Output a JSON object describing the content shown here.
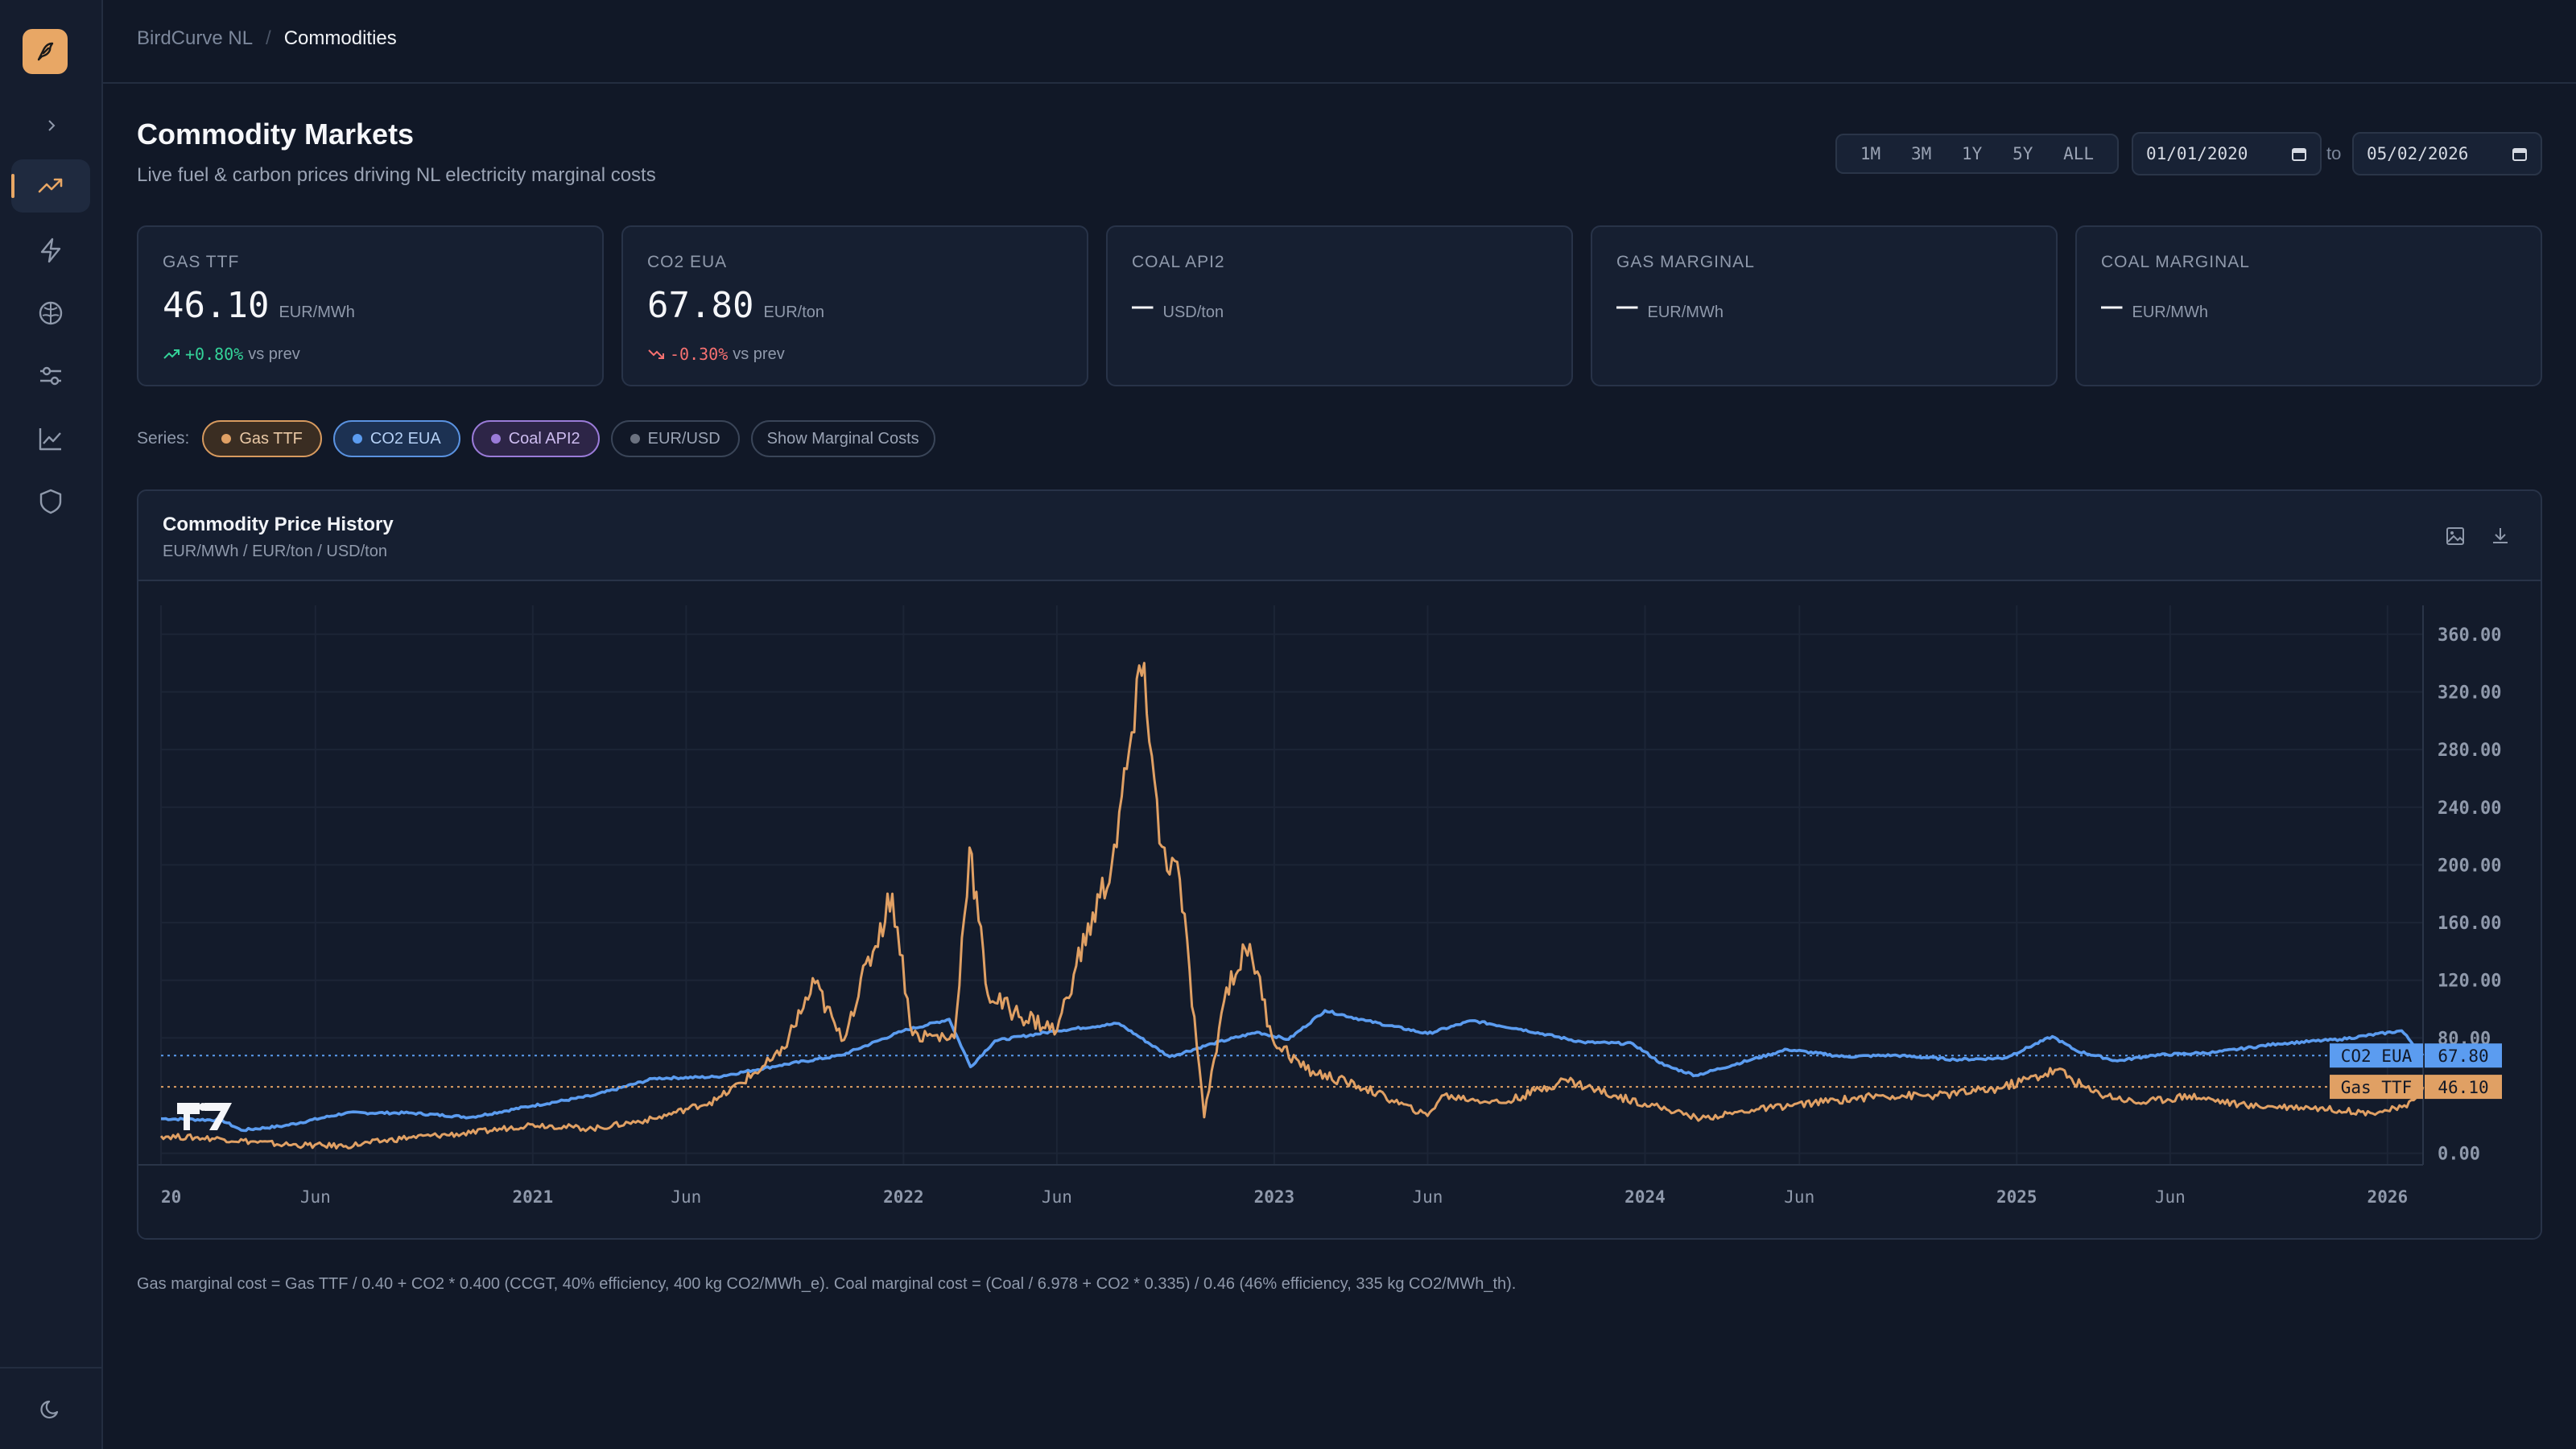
{
  "app": {
    "name": "BirdCurve NL",
    "section": "Commodities"
  },
  "header": {
    "title": "Commodity Markets",
    "subtitle": "Live fuel & carbon prices driving NL electricity marginal costs",
    "ranges": [
      "1M",
      "3M",
      "1Y",
      "5Y",
      "ALL"
    ],
    "date_from": "01/01/2020",
    "date_to": "05/02/2026",
    "to_label": "to"
  },
  "sidebar": {
    "items": [
      {
        "name": "trending-up-icon",
        "active": true
      },
      {
        "name": "lightning-icon"
      },
      {
        "name": "brain-icon"
      },
      {
        "name": "sliders-icon"
      },
      {
        "name": "line-chart-icon"
      },
      {
        "name": "shield-icon"
      }
    ],
    "theme_icon": "moon-icon"
  },
  "cards": [
    {
      "label": "GAS TTF",
      "value": "46.10",
      "unit": "EUR/MWh",
      "change": "+0.80%",
      "change_suffix": "vs prev",
      "direction": "up"
    },
    {
      "label": "CO2 EUA",
      "value": "67.80",
      "unit": "EUR/ton",
      "change": "-0.30%",
      "change_suffix": "vs prev",
      "direction": "down"
    },
    {
      "label": "COAL API2",
      "value": "—",
      "unit": "USD/ton"
    },
    {
      "label": "GAS MARGINAL",
      "value": "—",
      "unit": "EUR/MWh"
    },
    {
      "label": "COAL MARGINAL",
      "value": "—",
      "unit": "EUR/MWh"
    }
  ],
  "series_toggle": {
    "label": "Series:",
    "items": [
      "Gas TTF",
      "CO2 EUA",
      "Coal API2",
      "EUR/USD"
    ],
    "marginal_button": "Show Marginal Costs"
  },
  "chart": {
    "title": "Commodity Price History",
    "units": "EUR/MWh / EUR/ton / USD/ton",
    "actions": [
      "image-icon",
      "download-icon"
    ]
  },
  "chart_data": {
    "type": "line",
    "x_ticks": [
      "20",
      "Jun",
      "2021",
      "Jun",
      "2022",
      "Jun",
      "2023",
      "Jun",
      "2024",
      "Jun",
      "2025",
      "Jun",
      "2026"
    ],
    "y_ticks": [
      "0.00",
      "80.00",
      "120.00",
      "160.00",
      "200.00",
      "240.00",
      "280.00",
      "320.00",
      "360.00"
    ],
    "ylim": [
      -8,
      380
    ],
    "xlim": [
      "2020-01-01",
      "2026-02-05"
    ],
    "series": [
      {
        "name": "CO2 EUA",
        "color": "#5b9cf0",
        "last_value": "67.80",
        "points": [
          [
            "2020-01-01",
            24
          ],
          [
            "2020-03-01",
            23
          ],
          [
            "2020-03-20",
            16
          ],
          [
            "2020-05-01",
            19
          ],
          [
            "2020-07-01",
            28
          ],
          [
            "2020-09-01",
            28
          ],
          [
            "2020-11-01",
            25
          ],
          [
            "2021-01-01",
            33
          ],
          [
            "2021-03-01",
            40
          ],
          [
            "2021-05-01",
            52
          ],
          [
            "2021-07-01",
            53
          ],
          [
            "2021-09-01",
            61
          ],
          [
            "2021-11-01",
            68
          ],
          [
            "2022-01-01",
            85
          ],
          [
            "2022-02-15",
            93
          ],
          [
            "2022-03-08",
            60
          ],
          [
            "2022-04-01",
            78
          ],
          [
            "2022-06-01",
            85
          ],
          [
            "2022-08-01",
            90
          ],
          [
            "2022-09-20",
            67
          ],
          [
            "2022-11-01",
            76
          ],
          [
            "2022-12-15",
            84
          ],
          [
            "2023-01-15",
            79
          ],
          [
            "2023-02-20",
            99
          ],
          [
            "2023-04-01",
            92
          ],
          [
            "2023-06-01",
            83
          ],
          [
            "2023-07-15",
            92
          ],
          [
            "2023-09-01",
            86
          ],
          [
            "2023-11-01",
            77
          ],
          [
            "2023-12-20",
            76
          ],
          [
            "2024-01-20",
            61
          ],
          [
            "2024-02-20",
            54
          ],
          [
            "2024-04-15",
            65
          ],
          [
            "2024-05-20",
            72
          ],
          [
            "2024-07-15",
            67
          ],
          [
            "2024-09-01",
            68
          ],
          [
            "2024-11-01",
            65
          ],
          [
            "2024-12-20",
            66
          ],
          [
            "2025-02-05",
            81
          ],
          [
            "2025-03-01",
            71
          ],
          [
            "2025-04-10",
            64
          ],
          [
            "2025-05-15",
            68
          ],
          [
            "2025-07-15",
            70
          ],
          [
            "2025-09-15",
            76
          ],
          [
            "2025-11-15",
            79
          ],
          [
            "2026-01-15",
            85
          ],
          [
            "2026-02-05",
            67.8
          ]
        ]
      },
      {
        "name": "Gas TTF",
        "color": "#e0a064",
        "last_value": "46.10",
        "points": [
          [
            "2020-01-01",
            12
          ],
          [
            "2020-03-01",
            10
          ],
          [
            "2020-05-01",
            6
          ],
          [
            "2020-07-01",
            5
          ],
          [
            "2020-09-01",
            11
          ],
          [
            "2020-11-01",
            14
          ],
          [
            "2021-01-01",
            20
          ],
          [
            "2021-03-01",
            17
          ],
          [
            "2021-05-01",
            24
          ],
          [
            "2021-07-01",
            37
          ],
          [
            "2021-09-01",
            68
          ],
          [
            "2021-10-06",
            118
          ],
          [
            "2021-11-01",
            78
          ],
          [
            "2021-12-21",
            180
          ],
          [
            "2022-01-10",
            82
          ],
          [
            "2022-02-20",
            80
          ],
          [
            "2022-03-07",
            212
          ],
          [
            "2022-03-25",
            110
          ],
          [
            "2022-04-20",
            98
          ],
          [
            "2022-06-01",
            85
          ],
          [
            "2022-06-20",
            130
          ],
          [
            "2022-07-25",
            200
          ],
          [
            "2022-08-26",
            340
          ],
          [
            "2022-09-10",
            215
          ],
          [
            "2022-09-30",
            190
          ],
          [
            "2022-10-24",
            25
          ],
          [
            "2022-11-15",
            115
          ],
          [
            "2022-12-08",
            145
          ],
          [
            "2022-12-30",
            80
          ],
          [
            "2023-02-01",
            58
          ],
          [
            "2023-04-01",
            45
          ],
          [
            "2023-06-01",
            26
          ],
          [
            "2023-06-15",
            40
          ],
          [
            "2023-08-15",
            35
          ],
          [
            "2023-10-15",
            51
          ],
          [
            "2023-12-01",
            40
          ],
          [
            "2024-01-15",
            32
          ],
          [
            "2024-02-25",
            24
          ],
          [
            "2024-04-15",
            30
          ],
          [
            "2024-06-15",
            35
          ],
          [
            "2024-08-20",
            40
          ],
          [
            "2024-10-15",
            40
          ],
          [
            "2024-12-15",
            45
          ],
          [
            "2025-02-10",
            58
          ],
          [
            "2025-03-15",
            43
          ],
          [
            "2025-05-01",
            35
          ],
          [
            "2025-06-20",
            40
          ],
          [
            "2025-08-15",
            33
          ],
          [
            "2025-10-15",
            32
          ],
          [
            "2025-12-15",
            28
          ],
          [
            "2026-01-20",
            32
          ],
          [
            "2026-02-05",
            46.1
          ]
        ]
      }
    ]
  },
  "footnote": "Gas marginal cost = Gas TTF / 0.40 + CO2 * 0.400 (CCGT, 40% efficiency, 400 kg CO2/MWh_e). Coal marginal cost = (Coal / 6.978 + CO2 * 0.335) / 0.46 (46% efficiency, 335 kg CO2/MWh_th).",
  "colors": {
    "accent": "#e8a765",
    "gas": "#e0a064",
    "co2": "#5b9cf0",
    "coal": "#9a7bd8",
    "up": "#34d399",
    "down": "#f87171"
  }
}
